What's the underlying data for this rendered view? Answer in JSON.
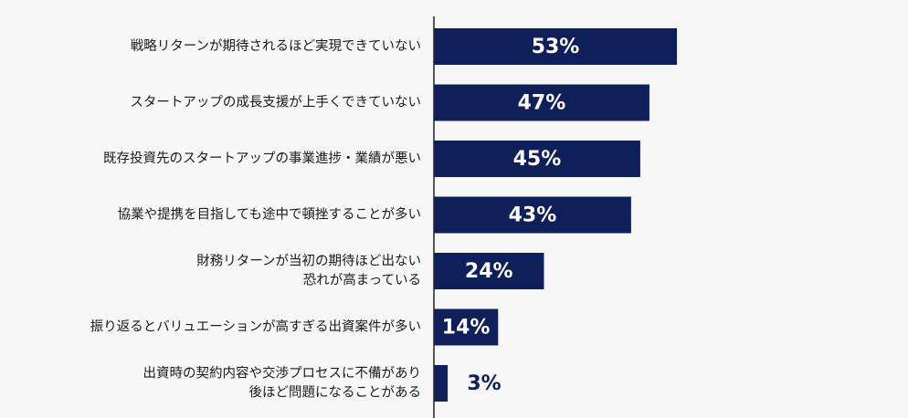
{
  "chart_data": {
    "type": "bar",
    "orientation": "horizontal",
    "categories": [
      "戦略リターンが期待されるほど実現できていない",
      "スタートアップの成長支援が上手くできていない",
      "既存投資先のスタートアップの事業進捗・業績が悪い",
      "協業や提携を目指しても途中で頓挫することが多い",
      "財務リターンが当初の期待ほど出ない\n恐れが高まっている",
      "振り返るとバリュエーションが高すぎる出資案件が多い",
      "出資時の契約内容や交渉プロセスに不備があり\n後ほど問題になることがある"
    ],
    "values": [
      53,
      47,
      45,
      43,
      24,
      14,
      3
    ],
    "value_labels": [
      "53%",
      "47%",
      "45%",
      "43%",
      "24%",
      "14%",
      "3%"
    ],
    "color": "#0f1f5a"
  }
}
